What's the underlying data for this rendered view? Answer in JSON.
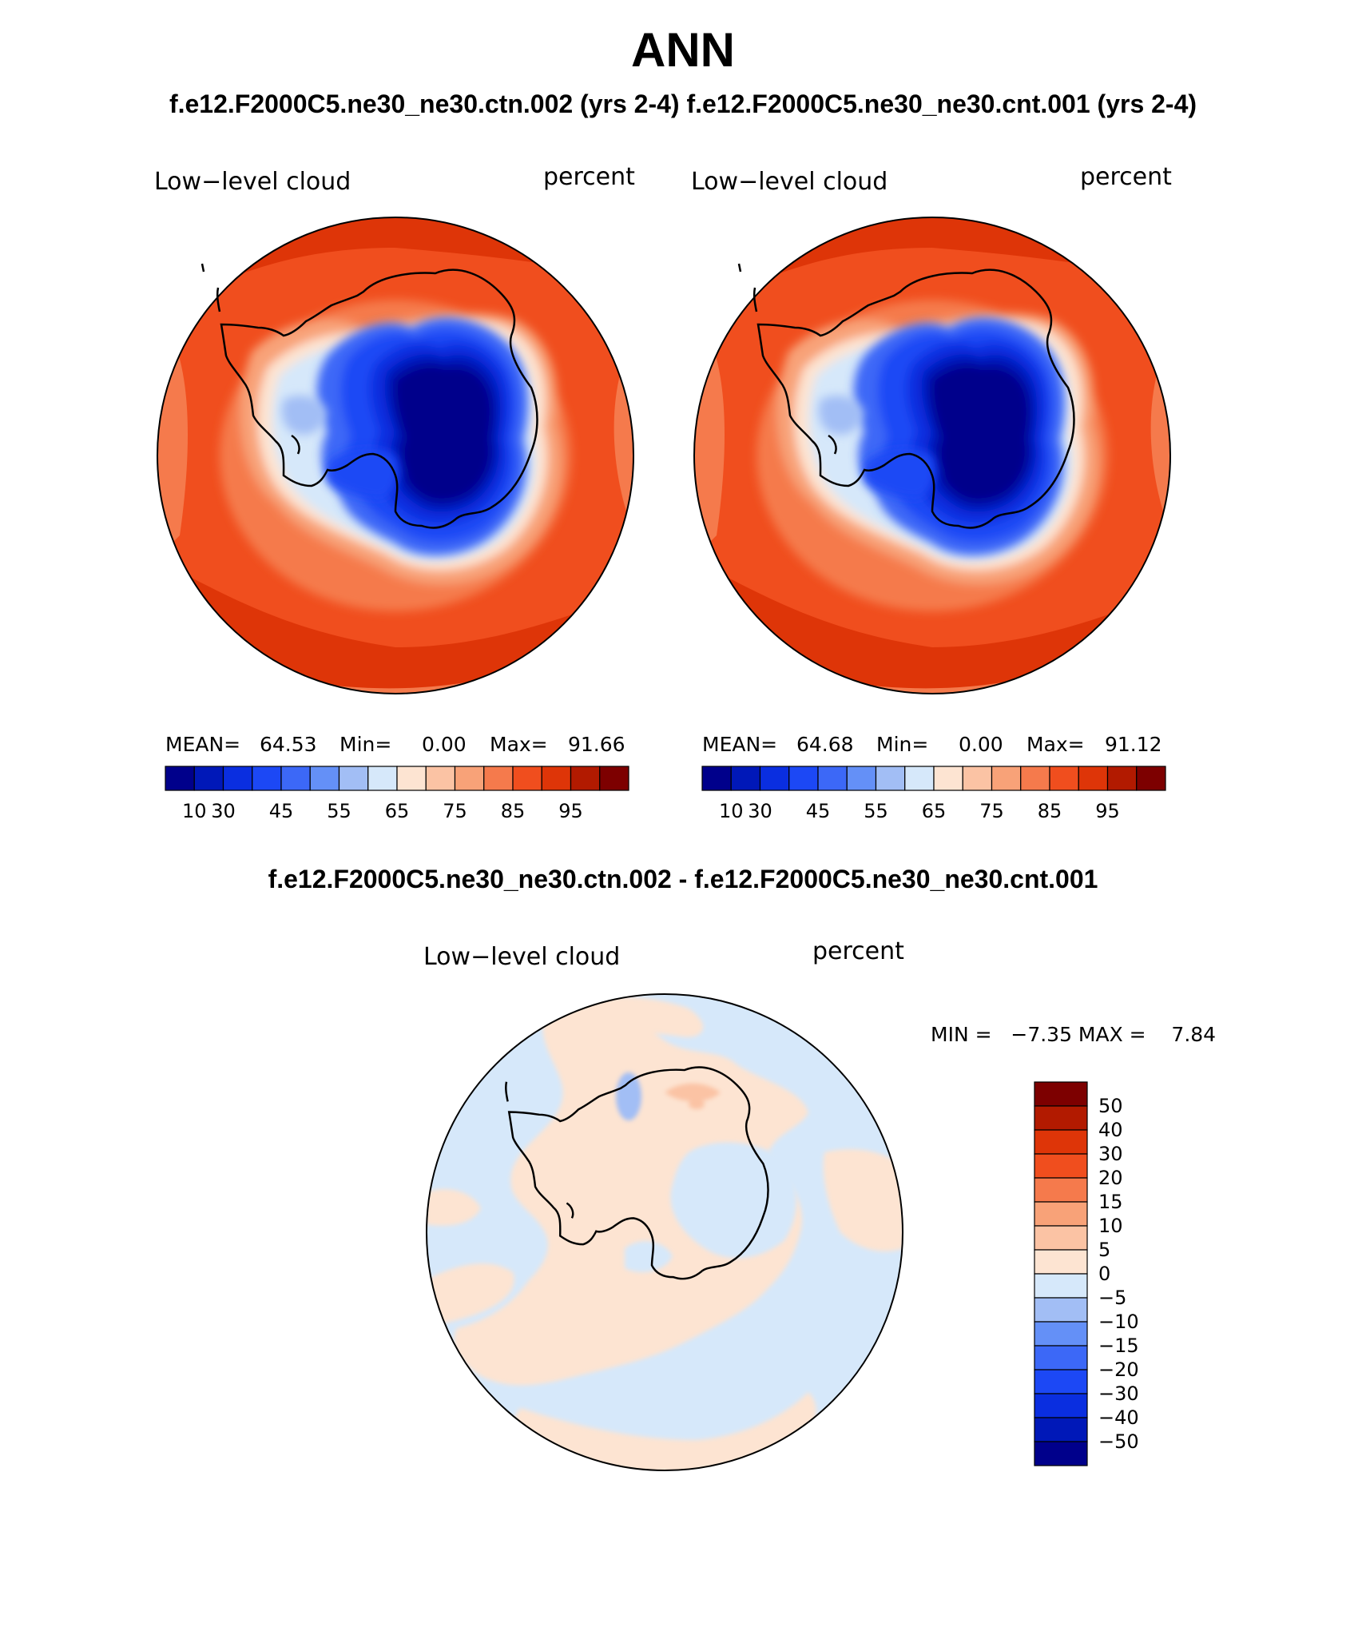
{
  "figure": {
    "season": "ANN",
    "header": "f.e12.F2000C5.ne30_ne30.ctn.002 (yrs 2-4) f.e12.F2000C5.ne30_ne30.cnt.001 (yrs 2-4)",
    "diff_header": "f.e12.F2000C5.ne30_ne30.ctn.002 - f.e12.F2000C5.ne30_ne30.cnt.001"
  },
  "panels": [
    {
      "variable": "Low−level cloud",
      "units": "percent",
      "mean_label": "MEAN=",
      "mean": "64.53",
      "min_label": "Min=",
      "min": "0.00",
      "max_label": "Max=",
      "max": "91.66"
    },
    {
      "variable": "Low−level cloud",
      "units": "percent",
      "mean_label": "MEAN=",
      "mean": "64.68",
      "min_label": "Min=",
      "min": "0.00",
      "max_label": "Max=",
      "max": "91.12"
    }
  ],
  "diff_panel": {
    "variable": "Low−level cloud",
    "units": "percent",
    "minmax": "MIN =   −7.35 MAX =    7.84"
  },
  "colorbar_horizontal": {
    "colors": [
      "#00008b",
      "#0018b8",
      "#0a2ee0",
      "#1c48f5",
      "#3c68f7",
      "#6490f7",
      "#a2bef5",
      "#d6e8fa",
      "#fde4d2",
      "#fbc3a4",
      "#f8a278",
      "#f57a4c",
      "#f04e1e",
      "#de3508",
      "#b21a00",
      "#7d0000"
    ],
    "tick_labels": [
      "10",
      "30",
      "45",
      "55",
      "65",
      "75",
      "85",
      "95"
    ]
  },
  "colorbar_vertical": {
    "colors_top_to_bottom": [
      "#7d0000",
      "#b21a00",
      "#de3508",
      "#f04e1e",
      "#f57a4c",
      "#f8a278",
      "#fbc3a4",
      "#fde4d2",
      "#d6e8fa",
      "#a2bef5",
      "#6490f7",
      "#3c68f7",
      "#1c48f5",
      "#0a2ee0",
      "#0018b8",
      "#00008b"
    ],
    "tick_labels": [
      "50",
      "40",
      "30",
      "20",
      "15",
      "10",
      "5",
      "0",
      "−5",
      "−10",
      "−15",
      "−20",
      "−30",
      "−40",
      "−50"
    ]
  }
}
